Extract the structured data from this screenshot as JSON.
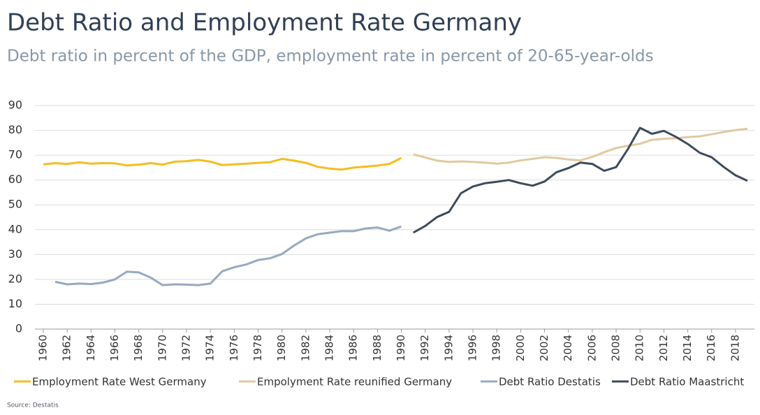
{
  "chart_data": {
    "type": "line",
    "title": "Debt Ratio and Employment Rate Germany",
    "subtitle": "Debt ratio in percent of the GDP, employment rate in percent of 20-65-year-olds",
    "source": "Source: Destatis",
    "x": [
      1960,
      1961,
      1962,
      1963,
      1964,
      1965,
      1966,
      1967,
      1968,
      1969,
      1970,
      1971,
      1972,
      1973,
      1974,
      1975,
      1976,
      1977,
      1978,
      1979,
      1980,
      1981,
      1982,
      1983,
      1984,
      1985,
      1986,
      1987,
      1988,
      1989,
      1990,
      1991,
      1992,
      1993,
      1994,
      1995,
      1996,
      1997,
      1998,
      1999,
      2000,
      2001,
      2002,
      2003,
      2004,
      2005,
      2006,
      2007,
      2008,
      2009,
      2010,
      2011,
      2012,
      2013,
      2014,
      2015,
      2016,
      2017,
      2018,
      2019
    ],
    "xlim": [
      1960,
      2019
    ],
    "xticks": [
      1960,
      1962,
      1964,
      1966,
      1968,
      1970,
      1972,
      1974,
      1976,
      1978,
      1980,
      1982,
      1984,
      1986,
      1988,
      1990,
      1992,
      1994,
      1996,
      1998,
      2000,
      2002,
      2004,
      2006,
      2008,
      2010,
      2012,
      2014,
      2016,
      2018
    ],
    "ylim": [
      0,
      90
    ],
    "yticks": [
      0,
      10,
      20,
      30,
      40,
      50,
      60,
      70,
      80,
      90
    ],
    "grid": true,
    "legend": "bottom",
    "series": [
      {
        "name": "Employment Rate West Germany",
        "color": "#f5bd1f",
        "values": [
          66.3,
          66.8,
          66.5,
          67.1,
          66.6,
          66.8,
          66.7,
          65.9,
          66.2,
          66.8,
          66.2,
          67.4,
          67.6,
          68.1,
          67.4,
          66.0,
          66.3,
          66.6,
          66.9,
          67.2,
          68.5,
          67.8,
          66.9,
          65.3,
          64.6,
          64.2,
          65.0,
          65.4,
          65.8,
          66.5,
          68.9,
          null,
          null,
          null,
          null,
          null,
          null,
          null,
          null,
          null,
          null,
          null,
          null,
          null,
          null,
          null,
          null,
          null,
          null,
          null,
          null,
          null,
          null,
          null,
          null,
          null,
          null,
          null,
          null,
          null
        ]
      },
      {
        "name": "Empolyment Rate reunified Germany",
        "color": "#e2c99f",
        "values": [
          null,
          null,
          null,
          null,
          null,
          null,
          null,
          null,
          null,
          null,
          null,
          null,
          null,
          null,
          null,
          null,
          null,
          null,
          null,
          null,
          null,
          null,
          null,
          null,
          null,
          null,
          null,
          null,
          null,
          null,
          null,
          70.3,
          69.1,
          67.8,
          67.3,
          67.5,
          67.3,
          67.0,
          66.6,
          67.0,
          67.9,
          68.5,
          69.2,
          68.9,
          68.3,
          67.9,
          69.3,
          71.2,
          72.9,
          73.8,
          74.6,
          76.2,
          76.6,
          76.8,
          77.3,
          77.6,
          78.4,
          79.3,
          80.1,
          80.6
        ]
      },
      {
        "name": "Debt Ratio Destatis",
        "color": "#97a9bf",
        "values": [
          null,
          19.0,
          18.0,
          18.3,
          18.1,
          18.7,
          20.0,
          23.1,
          22.8,
          20.7,
          17.7,
          18.0,
          17.9,
          17.7,
          18.3,
          23.3,
          24.9,
          26.0,
          27.8,
          28.5,
          30.2,
          33.6,
          36.5,
          38.2,
          38.8,
          39.4,
          39.4,
          40.5,
          40.9,
          39.6,
          41.3,
          null,
          null,
          null,
          null,
          null,
          null,
          null,
          null,
          null,
          null,
          null,
          null,
          null,
          null,
          null,
          null,
          null,
          null,
          null,
          null,
          null,
          null,
          null,
          null,
          null,
          null,
          null,
          null,
          null
        ]
      },
      {
        "name": "Debt Ratio Maastricht",
        "color": "#3d4a5c",
        "values": [
          null,
          null,
          null,
          null,
          null,
          null,
          null,
          null,
          null,
          null,
          null,
          null,
          null,
          null,
          null,
          null,
          null,
          null,
          null,
          null,
          null,
          null,
          null,
          null,
          null,
          null,
          null,
          null,
          null,
          null,
          null,
          38.8,
          41.5,
          45.1,
          47.2,
          54.7,
          57.4,
          58.7,
          59.3,
          60.0,
          58.7,
          57.7,
          59.4,
          63.1,
          64.8,
          67.0,
          66.5,
          63.7,
          65.2,
          72.6,
          81.0,
          78.6,
          79.8,
          77.4,
          74.5,
          71.0,
          69.2,
          65.3,
          61.9,
          59.7
        ]
      }
    ]
  }
}
